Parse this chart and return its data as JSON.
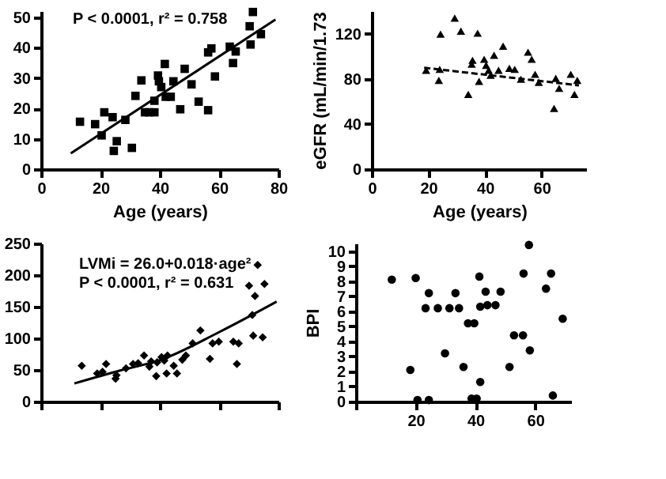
{
  "chart_data": [
    {
      "type": "scatter",
      "xlabel": "Age (years)",
      "xlim": [
        0,
        80
      ],
      "xticks": [
        0,
        20,
        40,
        60,
        80
      ],
      "ylim": [
        0,
        52
      ],
      "yticks": [
        0,
        10,
        20,
        30,
        40,
        50
      ],
      "marker": "square",
      "annotations": [
        "P < 0.0001, r² = 0.758"
      ],
      "series": [
        {
          "color": "#000000",
          "x": [
            13.1,
            18.2,
            20.4,
            21.3,
            24.1,
            24.5,
            25.5,
            28.4,
            30.6,
            31.8,
            33.8,
            35.0,
            36.4,
            38.2,
            38.2,
            39.4,
            39.7,
            40.5,
            41.7,
            42.0,
            43.7,
            44.6,
            46.9,
            48.4,
            50.7,
            53.1,
            56.3,
            57.4,
            56.3,
            58.6,
            63.6,
            64.7,
            65.6,
            70.3,
            70.6,
            71.4,
            74.1
          ],
          "values": [
            15.6,
            14.8,
            11.1,
            18.7,
            17.1,
            6.0,
            9.2,
            16.2,
            7.0,
            24.1,
            29.2,
            18.7,
            18.7,
            18.7,
            22.5,
            30.8,
            28.9,
            27.0,
            34.6,
            23.8,
            23.8,
            28.9,
            19.7,
            33.0,
            27.9,
            22.2,
            38.4,
            39.7,
            19.4,
            30.5,
            40.3,
            34.9,
            38.7,
            47.0,
            41.0,
            51.7,
            44.4
          ]
        },
        {
          "type": "line",
          "color": "#000000",
          "line_style": "solid",
          "marker": "none",
          "x": [
            10,
            79
          ],
          "values": [
            5.2,
            49.2
          ]
        }
      ]
    },
    {
      "type": "scatter",
      "xlabel": "Age (years)",
      "ylabel": "eGFR (mL/min/1.73",
      "xlim": [
        0,
        76
      ],
      "xticks": [
        0,
        20,
        40,
        60
      ],
      "ylim": [
        0,
        140
      ],
      "yticks": [
        0,
        40,
        80,
        120
      ],
      "marker": "triangle",
      "series": [
        {
          "color": "#000000",
          "x": [
            19.2,
            24.3,
            24.0,
            23.7,
            29.3,
            31.5,
            34.1,
            35.3,
            35.6,
            37.4,
            37.9,
            39.7,
            40.4,
            41.3,
            42.0,
            43.2,
            44.8,
            46.4,
            48.6,
            50.5,
            52.7,
            55.2,
            56.5,
            57.7,
            59.0,
            64.4,
            65.0,
            66.2,
            70.3,
            71.6,
            72.6
          ],
          "values": [
            87.6,
            119.6,
            88.4,
            78.7,
            133.8,
            122.2,
            66.2,
            92.9,
            96.4,
            120.4,
            77.8,
            97.3,
            92.0,
            87.6,
            83.1,
            100.9,
            87.6,
            108.9,
            89.3,
            88.4,
            79.6,
            103.6,
            97.3,
            84.0,
            76.9,
            53.8,
            80.4,
            71.6,
            84.0,
            66.2,
            78.7
          ]
        },
        {
          "type": "line",
          "color": "#000000",
          "line_style": "dashed",
          "marker": "none",
          "x": [
            18.5,
            73.2
          ],
          "values": [
            89.8,
            74.2
          ]
        }
      ]
    },
    {
      "type": "scatter",
      "tick_labels": "y",
      "xlim": [
        0,
        80
      ],
      "xticks": [
        0,
        20,
        40,
        60,
        80
      ],
      "ylim": [
        0,
        250
      ],
      "yticks": [
        0,
        50,
        100,
        150,
        200,
        250
      ],
      "marker": "diamond",
      "annotations": [
        "LVMi = 26.0+0.018·age²",
        "P < 0.0001, r² = 0.631"
      ],
      "series": [
        {
          "color": "#000000",
          "x": [
            13.7,
            18.9,
            20.7,
            21.9,
            25.1,
            25.4,
            28.6,
            31.0,
            32.7,
            34.7,
            36.5,
            37.1,
            39.1,
            38.8,
            40.6,
            41.5,
            42.3,
            42.6,
            44.7,
            45.8,
            47.6,
            48.8,
            51.1,
            53.7,
            56.9,
            57.8,
            59.9,
            64.8,
            66.0,
            66.6,
            70.1,
            71.2,
            71.5,
            72.1,
            73.0,
            74.7,
            75.3
          ],
          "values": [
            56.5,
            44.3,
            47.0,
            59.3,
            36.1,
            41.6,
            52.5,
            59.3,
            60.6,
            72.9,
            55.2,
            63.4,
            62.0,
            40.2,
            70.2,
            64.7,
            44.3,
            72.9,
            56.5,
            44.3,
            66.1,
            72.9,
            92.0,
            112.4,
            67.4,
            92.0,
            94.7,
            94.7,
            59.3,
            92.0,
            183.2,
            136.9,
            104.2,
            166.9,
            215.9,
            101.5,
            186.0
          ]
        },
        {
          "type": "line",
          "color": "#000000",
          "line_style": "solid",
          "marker": "none",
          "x": [
            11.2,
            26.6,
            40.4,
            60.1,
            79.4
          ],
          "values": [
            28.6,
            49,
            66,
            110,
            158
          ]
        }
      ]
    },
    {
      "type": "scatter",
      "ylabel": "BPI",
      "xlim": [
        0,
        72
      ],
      "xticks": [
        {
          "value": 0,
          "label": null
        },
        20,
        40,
        60
      ],
      "ylim": [
        0,
        10.5
      ],
      "yticks": [
        0,
        1,
        2,
        3,
        4,
        5,
        6,
        7,
        8,
        9,
        10
      ],
      "marker": "circle",
      "series": [
        {
          "color": "#000000",
          "x": [
            12.0,
            18.2,
            20.0,
            20.6,
            24.4,
            24.4,
            23.3,
            27.4,
            31.3,
            33.3,
            34.5,
            29.8,
            36.0,
            37.5,
            39.6,
            38.7,
            40.4,
            41.3,
            41.6,
            41.6,
            43.4,
            44.0,
            46.7,
            48.4,
            51.4,
            52.9,
            55.9,
            56.1,
            57.9,
            58.2,
            63.6,
            65.3,
            65.9,
            69.2
          ],
          "values": [
            8.1,
            2.1,
            8.2,
            0.1,
            0.1,
            7.2,
            6.2,
            6.2,
            6.2,
            7.2,
            6.2,
            3.2,
            2.3,
            5.2,
            5.2,
            0.2,
            0.2,
            8.3,
            1.3,
            6.3,
            7.3,
            6.4,
            6.4,
            7.3,
            2.3,
            4.4,
            4.4,
            8.5,
            10.4,
            3.4,
            7.5,
            8.5,
            0.4,
            5.5
          ]
        }
      ]
    }
  ]
}
